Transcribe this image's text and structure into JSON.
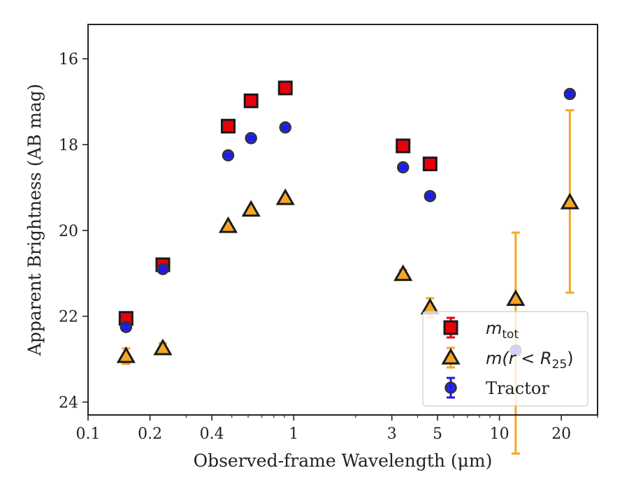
{
  "chart_data": {
    "type": "scatter",
    "title": "",
    "xlabel": "Observed-frame Wavelength (μm)",
    "ylabel": "Apparent Brightness (AB mag)",
    "xscale": "log",
    "xlim": [
      0.1,
      30
    ],
    "ylim": [
      24.3,
      15.2
    ],
    "y_inverted": true,
    "xticks": [
      {
        "value": 0.1,
        "label": "0.1"
      },
      {
        "value": 0.2,
        "label": "0.2"
      },
      {
        "value": 0.4,
        "label": "0.4"
      },
      {
        "value": 1,
        "label": "1"
      },
      {
        "value": 3,
        "label": "3"
      },
      {
        "value": 5,
        "label": "5"
      },
      {
        "value": 10,
        "label": "10"
      },
      {
        "value": 20,
        "label": "20"
      }
    ],
    "yticks": [
      {
        "value": 16,
        "label": "16"
      },
      {
        "value": 18,
        "label": "18"
      },
      {
        "value": 20,
        "label": "20"
      },
      {
        "value": 22,
        "label": "22"
      },
      {
        "value": 24,
        "label": "24"
      }
    ],
    "legend": {
      "position": "lower-right"
    },
    "series": [
      {
        "name": "m_tot",
        "legend_label": {
          "main": "m",
          "sub": "tot"
        },
        "marker": "square",
        "color": "#e8000b",
        "edge": "#1a1a1a",
        "errcolor": "#e8000b",
        "points": [
          {
            "x": 0.153,
            "y": 22.05,
            "err": 0.04
          },
          {
            "x": 0.231,
            "y": 20.8,
            "err": 0.03
          },
          {
            "x": 0.48,
            "y": 17.57,
            "err": 0.02
          },
          {
            "x": 0.62,
            "y": 16.98,
            "err": 0.02
          },
          {
            "x": 0.91,
            "y": 16.68,
            "err": 0.02
          },
          {
            "x": 3.4,
            "y": 18.03,
            "err": 0.03
          },
          {
            "x": 4.6,
            "y": 18.45,
            "err": 0.03
          }
        ]
      },
      {
        "name": "m(r<R_25)",
        "legend_label": {
          "main": "m(r < R",
          "sub": "25",
          "tail": ")"
        },
        "marker": "triangle",
        "color": "#f5a623",
        "edge": "#1a1a1a",
        "errcolor": "#f5a623",
        "points": [
          {
            "x": 0.153,
            "y": 22.93,
            "err": 0.18
          },
          {
            "x": 0.231,
            "y": 22.75,
            "err": 0.12
          },
          {
            "x": 0.48,
            "y": 19.9,
            "err": 0.05
          },
          {
            "x": 0.62,
            "y": 19.52,
            "err": 0.05
          },
          {
            "x": 0.91,
            "y": 19.25,
            "err": 0.05
          },
          {
            "x": 3.4,
            "y": 21.02,
            "err": 0.1
          },
          {
            "x": 4.6,
            "y": 21.8,
            "err": 0.22
          },
          {
            "x": 12.0,
            "y": 21.6,
            "errlow": 3.6,
            "errhigh": 1.55
          },
          {
            "x": 22.0,
            "y": 19.35,
            "errlow": 2.1,
            "errhigh": 2.15
          }
        ]
      },
      {
        "name": "Tractor",
        "legend_label": {
          "main": "Tractor"
        },
        "marker": "circle",
        "color": "#1a1aee",
        "edge": "#333333",
        "errcolor": "#1a1aee",
        "points": [
          {
            "x": 0.153,
            "y": 22.25,
            "err": 0.05
          },
          {
            "x": 0.231,
            "y": 20.9,
            "err": 0.04
          },
          {
            "x": 0.48,
            "y": 18.25,
            "err": 0.03
          },
          {
            "x": 0.62,
            "y": 17.85,
            "err": 0.03
          },
          {
            "x": 0.91,
            "y": 17.6,
            "err": 0.03
          },
          {
            "x": 3.4,
            "y": 18.53,
            "err": 0.03
          },
          {
            "x": 4.6,
            "y": 19.2,
            "err": 0.04
          },
          {
            "x": 12.0,
            "y": 22.8,
            "err": 0.1
          },
          {
            "x": 22.0,
            "y": 16.82,
            "err": 0.04
          }
        ]
      }
    ]
  }
}
